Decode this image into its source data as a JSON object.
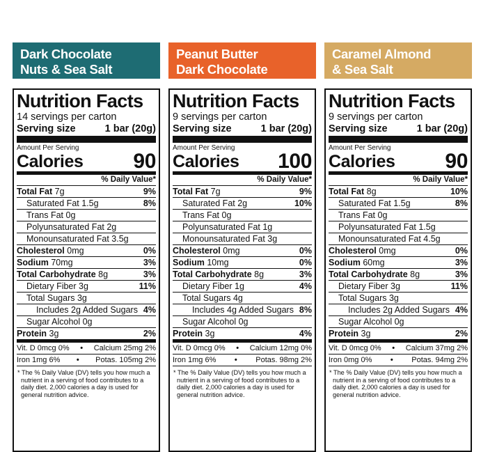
{
  "colors": {
    "teal": "#1e6c73",
    "orange": "#e8622a",
    "gold": "#d5aa63"
  },
  "common": {
    "title": "Nutrition Facts",
    "serving_size_label": "Serving size",
    "serving_size_value": "1 bar (20g)",
    "amount_per_serving": "Amount Per Serving",
    "calories_label": "Calories",
    "dv_header": "% Daily Value*",
    "footnote": "* The % Daily Value (DV) tells you how much a nutrient in a serving of food contributes to a daily diet. 2,000 calories a day is used for general nutrition advice."
  },
  "products": [
    {
      "name_line1": "Dark Chocolate",
      "name_line2": "Nuts & Sea Salt",
      "servings": "14 servings per carton",
      "calories": "90",
      "total_fat_label": "Total Fat",
      "total_fat_amt": "7g",
      "total_fat_dv": "9%",
      "sat_fat": "Saturated Fat 1.5g",
      "sat_fat_dv": "8%",
      "trans_fat": "Trans Fat 0g",
      "poly_fat": "Polyunsaturated Fat 2g",
      "mono_fat": "Monounsaturated Fat 3.5g",
      "chol_label": "Cholesterol",
      "chol_amt": "0mg",
      "chol_dv": "0%",
      "sodium_label": "Sodium",
      "sodium_amt": "70mg",
      "sodium_dv": "3%",
      "carb_label": "Total Carbohydrate",
      "carb_amt": "8g",
      "carb_dv": "3%",
      "fiber": "Dietary Fiber 3g",
      "fiber_dv": "11%",
      "sugars": "Total Sugars 3g",
      "added_sugars": "Includes 2g Added Sugars",
      "added_sugars_dv": "4%",
      "sugar_alcohol": "Sugar Alcohol 0g",
      "protein_label": "Protein",
      "protein_amt": "3g",
      "protein_dv": "2%",
      "vit_d": "Vit. D 0mcg 0%",
      "calcium": "Calcium 25mg 2%",
      "iron": "Iron 1mg 6%",
      "potas": "Potas. 105mg 2%"
    },
    {
      "name_line1": "Peanut Butter",
      "name_line2": "Dark Chocolate",
      "servings": "9 servings per carton",
      "calories": "100",
      "total_fat_label": "Total Fat",
      "total_fat_amt": "7g",
      "total_fat_dv": "9%",
      "sat_fat": "Saturated Fat 2g",
      "sat_fat_dv": "10%",
      "trans_fat": "Trans Fat 0g",
      "poly_fat": "Polyunsaturated Fat 1g",
      "mono_fat": "Monounsaturated Fat 3g",
      "chol_label": "Cholesterol",
      "chol_amt": "0mg",
      "chol_dv": "0%",
      "sodium_label": "Sodium",
      "sodium_amt": "10mg",
      "sodium_dv": "0%",
      "carb_label": "Total Carbohydrate",
      "carb_amt": "8g",
      "carb_dv": "3%",
      "fiber": "Dietary Fiber 1g",
      "fiber_dv": "4%",
      "sugars": "Total Sugars 4g",
      "added_sugars": "Includes 4g Added Sugars",
      "added_sugars_dv": "8%",
      "sugar_alcohol": "Sugar Alcohol 0g",
      "protein_label": "Protein",
      "protein_amt": "3g",
      "protein_dv": "4%",
      "vit_d": "Vit. D 0mcg 0%",
      "calcium": "Calcium 12mg 0%",
      "iron": "Iron 1mg 6%",
      "potas": "Potas. 98mg 2%"
    },
    {
      "name_line1": "Caramel Almond",
      "name_line2": "& Sea Salt",
      "servings": "9 servings per carton",
      "calories": "90",
      "total_fat_label": "Total Fat",
      "total_fat_amt": "8g",
      "total_fat_dv": "10%",
      "sat_fat": "Saturated Fat 1.5g",
      "sat_fat_dv": "8%",
      "trans_fat": "Trans Fat 0g",
      "poly_fat": "Polyunsaturated Fat 1.5g",
      "mono_fat": "Monounsaturated Fat 4.5g",
      "chol_label": "Cholesterol",
      "chol_amt": "0mg",
      "chol_dv": "0%",
      "sodium_label": "Sodium",
      "sodium_amt": "60mg",
      "sodium_dv": "3%",
      "carb_label": "Total Carbohydrate",
      "carb_amt": "8g",
      "carb_dv": "3%",
      "fiber": "Dietary Fiber 3g",
      "fiber_dv": "11%",
      "sugars": "Total Sugars 3g",
      "added_sugars": "Includes 2g Added Sugars",
      "added_sugars_dv": "4%",
      "sugar_alcohol": "Sugar Alcohol 0g",
      "protein_label": "Protein",
      "protein_amt": "3g",
      "protein_dv": "2%",
      "vit_d": "Vit. D 0mcg 0%",
      "calcium": "Calcium 37mg 2%",
      "iron": "Iron 0mg 0%",
      "potas": "Potas. 94mg 2%"
    }
  ]
}
